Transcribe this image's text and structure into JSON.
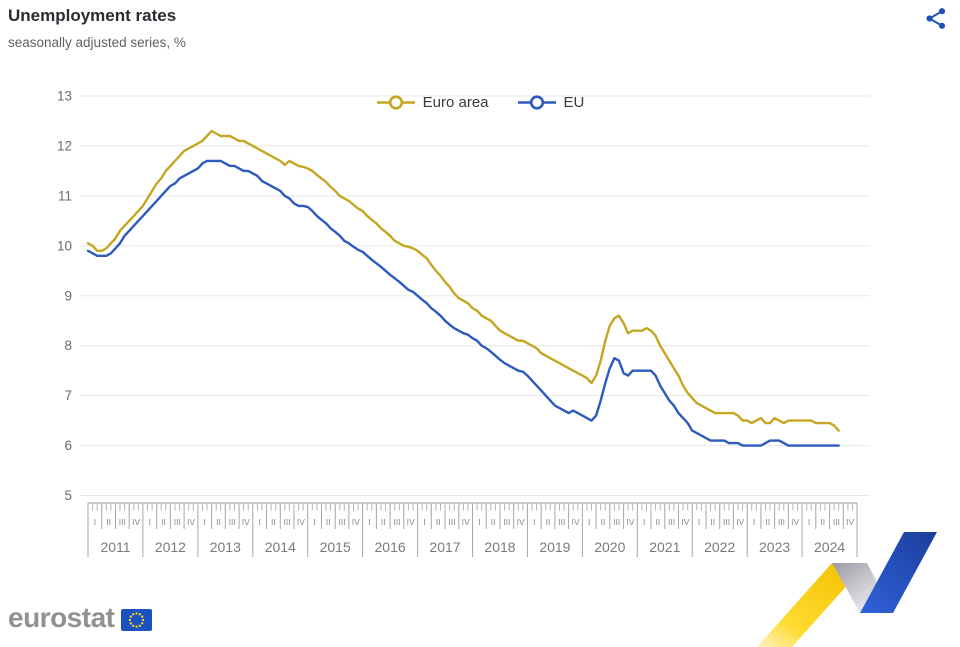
{
  "header": {
    "title": "Unemployment rates",
    "subtitle": "seasonally adjusted series, %"
  },
  "icons": {
    "share": "share-nodes-icon",
    "eu_flag": "eu-flag-icon"
  },
  "brand": {
    "share_icon_color": "#1e53b6",
    "flag_background": "#1d50c0",
    "flag_star_color": "#ffd617",
    "ribbon_yellow": "#fccf00",
    "ribbon_blue": "#1d4fc4",
    "ribbon_gray": "#c0c0c8",
    "wordmark_text": "eurostat"
  },
  "chart_data": {
    "type": "line",
    "title": "Unemployment rates",
    "subtitle": "seasonally adjusted series, %",
    "unit": "%",
    "frequency": "monthly",
    "x_start": "2011-01",
    "x_end": "2024-09",
    "ylim": [
      5,
      13
    ],
    "yticks": [
      5,
      6,
      7,
      8,
      9,
      10,
      11,
      12,
      13
    ],
    "grid": true,
    "legend_position": "top-center",
    "years": [
      2011,
      2012,
      2013,
      2014,
      2015,
      2016,
      2017,
      2018,
      2019,
      2020,
      2021,
      2022,
      2023,
      2024
    ],
    "quarter_labels": [
      "I",
      "II",
      "III",
      "IV"
    ],
    "series": [
      {
        "name": "Euro area",
        "color": "#c5a623",
        "values": [
          10.05,
          10.0,
          9.9,
          9.9,
          9.95,
          10.05,
          10.15,
          10.3,
          10.4,
          10.5,
          10.6,
          10.7,
          10.8,
          10.95,
          11.1,
          11.25,
          11.35,
          11.5,
          11.6,
          11.7,
          11.8,
          11.9,
          11.95,
          12.0,
          12.05,
          12.1,
          12.2,
          12.3,
          12.25,
          12.2,
          12.2,
          12.2,
          12.15,
          12.1,
          12.1,
          12.05,
          12.0,
          11.95,
          11.9,
          11.85,
          11.8,
          11.75,
          11.7,
          11.62,
          11.7,
          11.65,
          11.6,
          11.58,
          11.55,
          11.5,
          11.42,
          11.35,
          11.28,
          11.18,
          11.1,
          11.0,
          10.95,
          10.9,
          10.82,
          10.75,
          10.7,
          10.6,
          10.52,
          10.45,
          10.35,
          10.28,
          10.2,
          10.1,
          10.05,
          10.0,
          9.98,
          9.95,
          9.9,
          9.82,
          9.75,
          9.62,
          9.5,
          9.4,
          9.28,
          9.18,
          9.05,
          8.95,
          8.9,
          8.85,
          8.75,
          8.7,
          8.6,
          8.55,
          8.5,
          8.4,
          8.3,
          8.25,
          8.2,
          8.15,
          8.1,
          8.1,
          8.05,
          8.0,
          7.95,
          7.85,
          7.8,
          7.75,
          7.7,
          7.65,
          7.6,
          7.55,
          7.5,
          7.45,
          7.4,
          7.35,
          7.25,
          7.4,
          7.7,
          8.1,
          8.4,
          8.55,
          8.6,
          8.45,
          8.25,
          8.3,
          8.3,
          8.3,
          8.35,
          8.3,
          8.2,
          8.0,
          7.85,
          7.7,
          7.55,
          7.4,
          7.2,
          7.05,
          6.95,
          6.85,
          6.8,
          6.75,
          6.7,
          6.65,
          6.65,
          6.65,
          6.65,
          6.65,
          6.6,
          6.5,
          6.5,
          6.45,
          6.5,
          6.55,
          6.45,
          6.45,
          6.55,
          6.5,
          6.45,
          6.5,
          6.5,
          6.5,
          6.5,
          6.5,
          6.5,
          6.45,
          6.45,
          6.45,
          6.45,
          6.4,
          6.3
        ]
      },
      {
        "name": "EU",
        "color": "#2d5abd",
        "values": [
          9.9,
          9.85,
          9.8,
          9.8,
          9.8,
          9.85,
          9.95,
          10.05,
          10.2,
          10.3,
          10.4,
          10.5,
          10.6,
          10.7,
          10.8,
          10.9,
          11.0,
          11.1,
          11.2,
          11.25,
          11.35,
          11.4,
          11.45,
          11.5,
          11.55,
          11.65,
          11.7,
          11.7,
          11.7,
          11.7,
          11.65,
          11.6,
          11.6,
          11.55,
          11.5,
          11.5,
          11.45,
          11.4,
          11.3,
          11.25,
          11.2,
          11.15,
          11.1,
          11.0,
          10.95,
          10.85,
          10.8,
          10.8,
          10.78,
          10.7,
          10.6,
          10.52,
          10.45,
          10.35,
          10.28,
          10.2,
          10.1,
          10.05,
          9.98,
          9.92,
          9.88,
          9.8,
          9.72,
          9.65,
          9.58,
          9.5,
          9.42,
          9.35,
          9.28,
          9.2,
          9.12,
          9.08,
          9.0,
          8.92,
          8.85,
          8.75,
          8.68,
          8.6,
          8.5,
          8.42,
          8.35,
          8.3,
          8.25,
          8.22,
          8.15,
          8.1,
          8.0,
          7.95,
          7.88,
          7.8,
          7.72,
          7.65,
          7.6,
          7.55,
          7.5,
          7.48,
          7.4,
          7.3,
          7.2,
          7.1,
          7.0,
          6.9,
          6.8,
          6.75,
          6.7,
          6.65,
          6.7,
          6.65,
          6.6,
          6.55,
          6.5,
          6.6,
          6.9,
          7.25,
          7.55,
          7.75,
          7.7,
          7.45,
          7.4,
          7.5,
          7.5,
          7.5,
          7.5,
          7.5,
          7.4,
          7.2,
          7.05,
          6.9,
          6.8,
          6.65,
          6.55,
          6.45,
          6.3,
          6.25,
          6.2,
          6.15,
          6.1,
          6.1,
          6.1,
          6.1,
          6.05,
          6.05,
          6.05,
          6.0,
          6.0,
          6.0,
          6.0,
          6.0,
          6.05,
          6.1,
          6.1,
          6.1,
          6.05,
          6.0,
          6.0,
          6.0,
          6.0,
          6.0,
          6.0,
          6.0,
          6.0,
          6.0,
          6.0,
          6.0,
          6.0
        ]
      }
    ]
  }
}
